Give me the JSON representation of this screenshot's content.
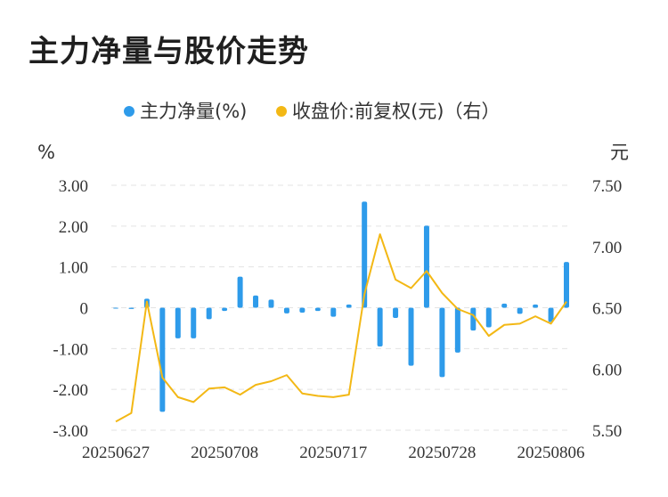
{
  "title": "主力净量与股价走势",
  "chart_data": {
    "type": "bar+line",
    "legend": [
      {
        "name": "主力净量(%)",
        "color": "#2e9bea",
        "marker": "dot"
      },
      {
        "name": "收盘价:前复权(元)（右）",
        "color": "#f3b815",
        "marker": "dot"
      }
    ],
    "left_unit": "%",
    "right_unit": "元",
    "y_left_ticks": [
      "3.00",
      "2.00",
      "1.00",
      "0",
      "-1.00",
      "-2.00",
      "-3.00"
    ],
    "y_left_lim": [
      -3,
      3
    ],
    "y_right_ticks": [
      "7.50",
      "7.00",
      "6.50",
      "6.00",
      "5.50"
    ],
    "y_right_lim": [
      5.5,
      7.5
    ],
    "x_labels": [
      "20250627",
      "20250708",
      "20250717",
      "20250728",
      "20250806"
    ],
    "x_label_index": [
      0,
      7,
      14,
      21,
      28
    ],
    "series": [
      {
        "name": "主力净量(%)",
        "type": "bar",
        "color": "#2e9bea",
        "values": [
          -0.02,
          -0.03,
          0.22,
          -2.55,
          -0.75,
          -0.75,
          -0.28,
          -0.08,
          0.76,
          0.3,
          0.2,
          -0.14,
          -0.12,
          -0.08,
          -0.22,
          0.08,
          2.6,
          -0.95,
          -0.25,
          -1.42,
          2.01,
          -1.7,
          -1.1,
          -0.56,
          -0.48,
          0.1,
          -0.15,
          0.08,
          -0.35,
          1.12
        ]
      },
      {
        "name": "收盘价:前复权(元)（右）",
        "type": "line",
        "color": "#f3b815",
        "values": [
          5.57,
          5.64,
          6.55,
          5.93,
          5.77,
          5.73,
          5.84,
          5.85,
          5.79,
          5.87,
          5.9,
          5.95,
          5.8,
          5.78,
          5.77,
          5.79,
          6.61,
          7.1,
          6.73,
          6.66,
          6.8,
          6.62,
          6.49,
          6.44,
          6.27,
          6.36,
          6.37,
          6.43,
          6.37,
          6.55
        ]
      }
    ],
    "grid": "horizontal-dashed"
  }
}
